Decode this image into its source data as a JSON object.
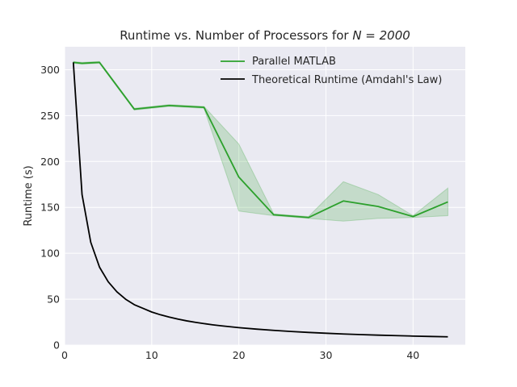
{
  "chart_data": {
    "type": "line",
    "title": "Runtime vs. Number of Processors for ",
    "title_math": "N = 2000",
    "xlabel": "",
    "ylabel": "Runtime (s)",
    "xlim": [
      0,
      46
    ],
    "ylim": [
      0,
      325
    ],
    "xticks": [
      0,
      10,
      20,
      30,
      40
    ],
    "yticks": [
      0,
      50,
      100,
      150,
      200,
      250,
      300
    ],
    "grid": true,
    "legend_position": "top-right",
    "series": [
      {
        "name": "Parallel MATLAB",
        "color": "#2ca02c",
        "x": [
          1,
          2,
          3,
          4,
          8,
          12,
          16,
          20,
          24,
          28,
          32,
          36,
          40,
          44
        ],
        "y": [
          308,
          307,
          307.5,
          308,
          257,
          261,
          259,
          183,
          142,
          139,
          157,
          151,
          140,
          156
        ],
        "y_lower": [
          307,
          306,
          306.5,
          307,
          256,
          260,
          258,
          146,
          141,
          138,
          135,
          138,
          139,
          141
        ],
        "y_upper": [
          309,
          308,
          308.5,
          309,
          258,
          262,
          260,
          219,
          143,
          140,
          178,
          164,
          141,
          171
        ]
      },
      {
        "name": "Theoretical Runtime (Amdahl's Law)",
        "color": "#000000",
        "x": [
          1,
          2,
          3,
          4,
          5,
          6,
          7,
          8,
          9,
          10,
          11,
          12,
          13,
          14,
          15,
          16,
          17,
          18,
          19,
          20,
          22,
          24,
          26,
          28,
          30,
          32,
          34,
          36,
          38,
          40,
          42,
          44
        ],
        "y": [
          308,
          164,
          112,
          85,
          69,
          58,
          50,
          44,
          40,
          36,
          33,
          30.5,
          28.3,
          26.4,
          24.8,
          23.4,
          22.1,
          21,
          20,
          19,
          17.4,
          16,
          14.8,
          13.8,
          12.9,
          12.1,
          11.4,
          10.8,
          10.3,
          9.8,
          9.4,
          9
        ]
      }
    ]
  }
}
